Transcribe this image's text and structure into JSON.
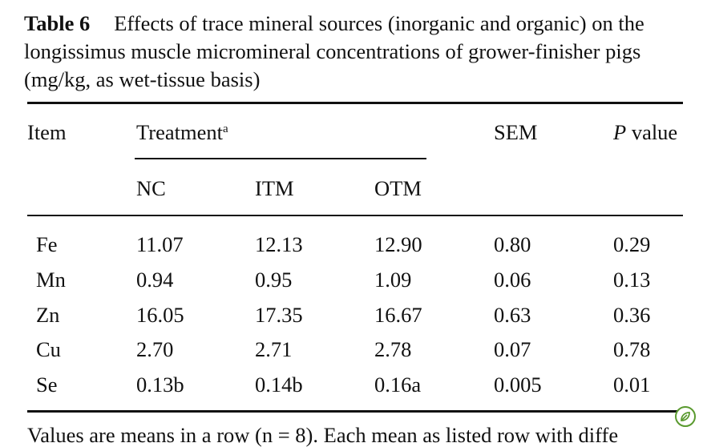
{
  "caption": {
    "label": "Table 6",
    "text": "Effects of trace mineral sources (inorganic and organic) on the longissimus muscle micromineral concentrations of grower-finisher pigs (mg/kg, as wet-tissue basis)"
  },
  "header": {
    "item": "Item",
    "treatment": "Treatment",
    "treatment_sup": "a",
    "sem": "SEM",
    "p_italic": "P",
    "p_rest": " value",
    "subcols": [
      "NC",
      "ITM",
      "OTM"
    ]
  },
  "rows": [
    {
      "item": "Fe",
      "nc": "11.07",
      "itm": "12.13",
      "otm": "12.90",
      "sem": "0.80",
      "p": "0.29"
    },
    {
      "item": "Mn",
      "nc": "0.94",
      "itm": "0.95",
      "otm": "1.09",
      "sem": "0.06",
      "p": "0.13"
    },
    {
      "item": "Zn",
      "nc": "16.05",
      "itm": "17.35",
      "otm": "16.67",
      "sem": "0.63",
      "p": "0.36"
    },
    {
      "item": "Cu",
      "nc": "2.70",
      "itm": "2.71",
      "otm": "2.78",
      "sem": "0.07",
      "p": "0.78"
    },
    {
      "item": "Se",
      "nc": "0.13b",
      "itm": "0.14b",
      "otm": "0.16a",
      "sem": "0.005",
      "p": "0.01"
    }
  ],
  "footnote": "Values are means in a row (n = 8). Each mean as listed row with diffe",
  "badge_icon": "leaf-badge-icon",
  "colors": {
    "badge": "#5a9a2f",
    "text": "#111111"
  }
}
